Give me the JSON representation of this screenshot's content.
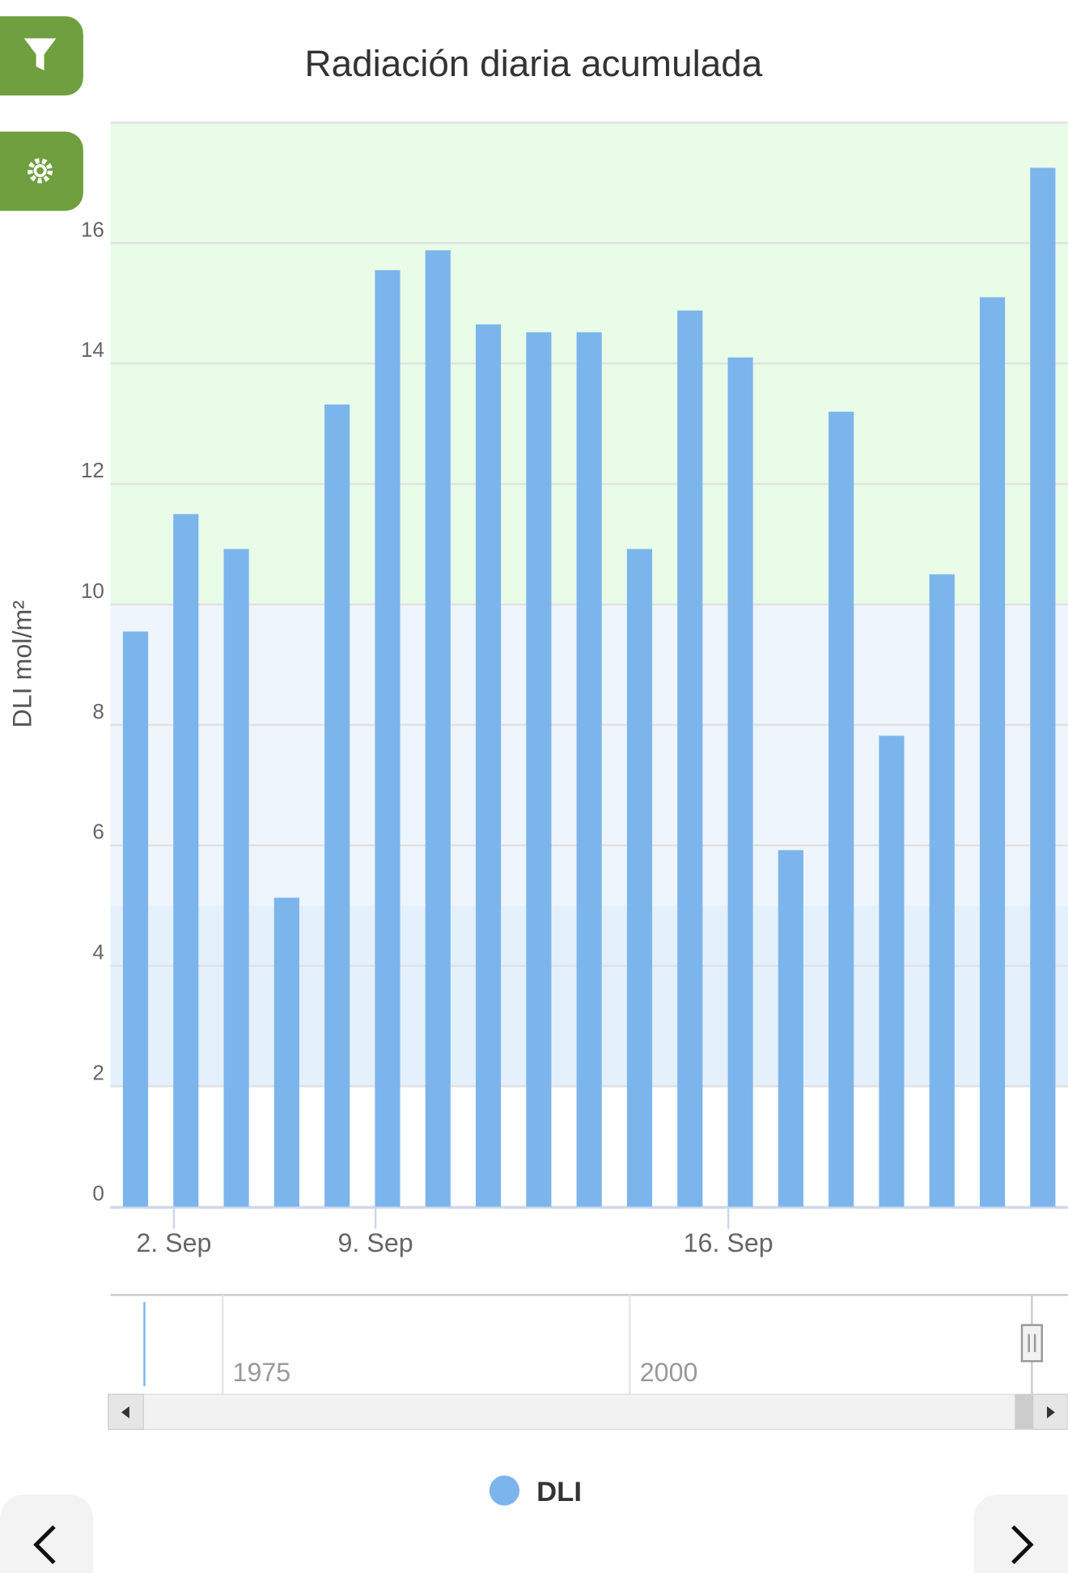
{
  "chart_data": {
    "type": "bar",
    "title": "Radiación diaria acumulada",
    "y_label": "DLI mol/m²",
    "categories": [
      null,
      "2. Sep",
      null,
      null,
      null,
      "9. Sep",
      null,
      null,
      null,
      null,
      null,
      null,
      "16. Sep",
      null,
      null,
      null,
      null,
      null,
      null
    ],
    "series": [
      {
        "name": "DLI",
        "color": "#7cb5ec",
        "values": [
          9.55,
          11.5,
          10.92,
          5.13,
          13.32,
          15.55,
          15.88,
          14.65,
          14.52,
          14.52,
          10.92,
          14.88,
          14.1,
          5.92,
          13.2,
          7.82,
          10.5,
          15.1,
          17.25
        ]
      }
    ],
    "ylim": [
      0,
      18
    ],
    "yticks": [
      0,
      2,
      4,
      6,
      8,
      10,
      12,
      14,
      16
    ],
    "grid": true,
    "plot_bands": [
      {
        "from": 10,
        "to": 18,
        "color": "#e8fce8"
      },
      {
        "from": 5,
        "to": 10,
        "color": "#eef5fd"
      },
      {
        "from": 2,
        "to": 5,
        "color": "#e4f1fd"
      }
    ],
    "navigator": {
      "labels": [
        "1975",
        "2000"
      ]
    },
    "legend": "bottom"
  }
}
